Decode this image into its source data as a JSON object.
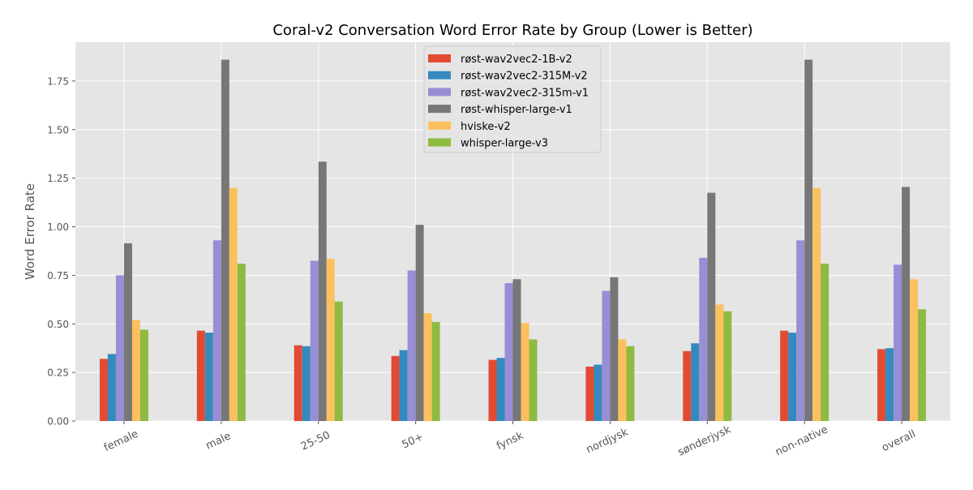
{
  "chart_data": {
    "type": "bar",
    "title": "Coral-v2 Conversation Word Error Rate by Group (Lower is Better)",
    "xlabel": "",
    "ylabel": "Word Error Rate",
    "ylim": [
      0,
      1.86
    ],
    "yticks": [
      0.0,
      0.25,
      0.5,
      0.75,
      1.0,
      1.25,
      1.5,
      1.75
    ],
    "ytick_labels": [
      "0.00",
      "0.25",
      "0.50",
      "0.75",
      "1.00",
      "1.25",
      "1.50",
      "1.75"
    ],
    "grid": true,
    "legend_position": "top-center",
    "categories": [
      "female",
      "male",
      "25-50",
      "50+",
      "fynsk",
      "nordjysk",
      "sønderjysk",
      "non-native",
      "overall"
    ],
    "series": [
      {
        "name": "røst-wav2vec2-1B-v2",
        "color": "#E24A33",
        "values": [
          0.32,
          0.465,
          0.39,
          0.335,
          0.315,
          0.28,
          0.36,
          0.465,
          0.37
        ]
      },
      {
        "name": "røst-wav2vec2-315M-v2",
        "color": "#348ABD",
        "values": [
          0.345,
          0.455,
          0.385,
          0.365,
          0.325,
          0.29,
          0.4,
          0.455,
          0.375
        ]
      },
      {
        "name": "røst-wav2vec2-315m-v1",
        "color": "#988ED5",
        "values": [
          0.75,
          0.93,
          0.825,
          0.775,
          0.71,
          0.67,
          0.84,
          0.93,
          0.805
        ]
      },
      {
        "name": "røst-whisper-large-v1",
        "color": "#777777",
        "values": [
          0.915,
          1.86,
          1.335,
          1.01,
          0.73,
          0.74,
          1.175,
          1.86,
          1.205
        ]
      },
      {
        "name": "hviske-v2",
        "color": "#FBC15E",
        "values": [
          0.52,
          1.2,
          0.835,
          0.555,
          0.505,
          0.42,
          0.6,
          1.2,
          0.73
        ]
      },
      {
        "name": "whisper-large-v3",
        "color": "#8EBA42",
        "values": [
          0.47,
          0.81,
          0.615,
          0.51,
          0.42,
          0.385,
          0.565,
          0.81,
          0.575
        ]
      }
    ]
  }
}
